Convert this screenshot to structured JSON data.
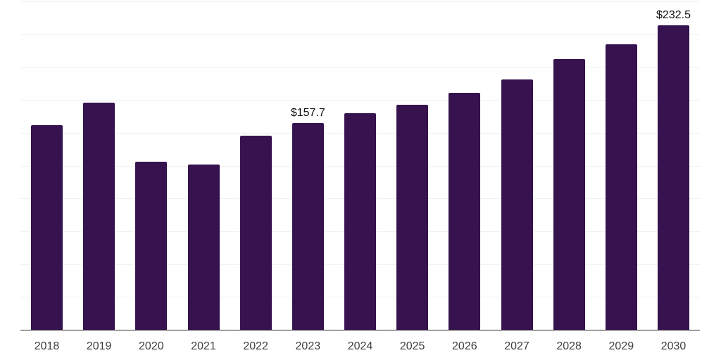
{
  "chart": {
    "background_color": "#ffffff",
    "bar_color": "#36124e",
    "grid_color": "#f0f0f0",
    "axis_color": "#2a2a2a",
    "tick_label_color": "#3f3f3f",
    "data_label_color": "#101010"
  },
  "chart_data": {
    "type": "bar",
    "title": "",
    "subtitle": "",
    "xlabel": "",
    "ylabel": "",
    "legend": "none",
    "grid": "horizontal",
    "y_axis_tick_labels_visible": false,
    "ylim": [
      0,
      250
    ],
    "gridline_step": 25,
    "currency_prefix": "$",
    "categories": [
      "2018",
      "2019",
      "2020",
      "2021",
      "2022",
      "2023",
      "2024",
      "2025",
      "2026",
      "2027",
      "2028",
      "2029",
      "2030"
    ],
    "values": [
      156.5,
      173.5,
      128.4,
      126.3,
      148.3,
      157.7,
      165.5,
      172.0,
      181.2,
      191.3,
      206.4,
      218.1,
      232.5
    ],
    "data_labels": [
      {
        "category": "2023",
        "text": "$157.7"
      },
      {
        "category": "2030",
        "text": "$232.5"
      }
    ]
  }
}
